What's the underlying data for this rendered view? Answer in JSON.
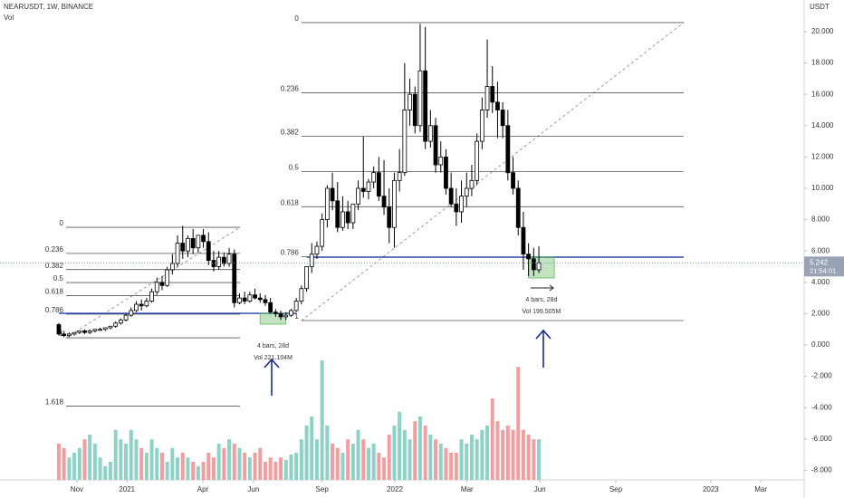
{
  "chart_data": {
    "type": "candlestick",
    "title": "NEARUSDT, 1W, BINANCE",
    "volume_label": "Vol",
    "y_axis_label": "USDT",
    "countdown": "21:54:01",
    "open": [
      1.3,
      0.7,
      0.6,
      0.7,
      0.8,
      0.9,
      0.8,
      0.9,
      1.0,
      1.0,
      1.1,
      1.2,
      1.4,
      1.6,
      1.9,
      2.2,
      2.6,
      2.5,
      2.8,
      3.4,
      4.0,
      3.8,
      4.8,
      5.2,
      6.5,
      6.0,
      6.8,
      6.2,
      7.0,
      6.6,
      5.4,
      5.0,
      5.6,
      5.2,
      5.8,
      2.7,
      3.0,
      2.8,
      3.2,
      3.0,
      2.9,
      2.7,
      2.1,
      2.0,
      1.8,
      1.9,
      2.2,
      2.8,
      3.6,
      5.0,
      5.8,
      6.3,
      8.0,
      10.0,
      9.2,
      7.5,
      8.5,
      7.8,
      9.0,
      10.0,
      9.8,
      10.4,
      11.0,
      9.5,
      8.8,
      7.5,
      10.5,
      11.0,
      15.0,
      16.0,
      14.0,
      17.5,
      13.0,
      14.0,
      11.5,
      12.0,
      10.0,
      9.0,
      8.5,
      9.5,
      10.0,
      10.5,
      13.0,
      15.0,
      16.5,
      15.5,
      15.0,
      14.0,
      11.0,
      10.0,
      7.5,
      5.8,
      5.5,
      4.8
    ],
    "high": [
      1.4,
      0.9,
      0.8,
      0.8,
      0.9,
      1.0,
      1.0,
      1.0,
      1.1,
      1.1,
      1.2,
      1.5,
      1.7,
      2.0,
      2.4,
      2.8,
      2.9,
      3.0,
      3.6,
      4.3,
      4.4,
      5.0,
      5.8,
      7.0,
      7.6,
      7.0,
      7.4,
      7.0,
      7.4,
      7.2,
      6.0,
      6.0,
      5.9,
      6.2,
      6.1,
      3.3,
      3.4,
      3.4,
      3.6,
      3.3,
      3.2,
      3.0,
      2.3,
      2.2,
      2.1,
      2.3,
      3.0,
      3.8,
      5.0,
      6.5,
      6.6,
      8.4,
      10.2,
      11.0,
      10.4,
      9.5,
      9.2,
      9.0,
      10.5,
      13.3,
      10.6,
      11.4,
      12.0,
      11.8,
      10.0,
      11.0,
      12.5,
      18.0,
      17.0,
      16.5,
      20.5,
      20.3,
      15.0,
      14.5,
      13.0,
      12.5,
      11.0,
      10.0,
      10.5,
      11.0,
      11.5,
      13.5,
      15.8,
      19.5,
      17.8,
      16.8,
      15.5,
      15.0,
      12.0,
      10.5,
      8.5,
      6.5,
      6.2,
      6.3
    ],
    "low": [
      0.6,
      0.5,
      0.5,
      0.6,
      0.7,
      0.7,
      0.7,
      0.8,
      0.9,
      0.9,
      1.0,
      1.1,
      1.3,
      1.5,
      1.8,
      2.1,
      2.2,
      2.4,
      2.7,
      3.2,
      3.5,
      3.7,
      4.5,
      5.0,
      5.5,
      5.6,
      5.8,
      5.9,
      6.2,
      5.1,
      4.7,
      4.8,
      5.0,
      5.0,
      2.4,
      2.6,
      2.6,
      2.7,
      2.9,
      2.7,
      2.5,
      2.0,
      1.8,
      1.6,
      1.6,
      1.8,
      2.1,
      2.6,
      3.4,
      4.6,
      5.5,
      6.0,
      7.5,
      8.6,
      7.2,
      7.3,
      7.4,
      7.4,
      8.6,
      9.4,
      9.3,
      10.0,
      9.2,
      8.3,
      6.5,
      6.2,
      9.8,
      10.8,
      14.0,
      13.5,
      13.6,
      12.5,
      12.6,
      11.0,
      11.0,
      9.6,
      8.8,
      7.6,
      7.8,
      8.8,
      9.5,
      10.2,
      12.5,
      14.5,
      14.8,
      13.2,
      13.2,
      10.5,
      9.6,
      7.0,
      4.8,
      4.4,
      4.4,
      4.6
    ],
    "close": [
      0.7,
      0.6,
      0.7,
      0.8,
      0.9,
      0.8,
      0.9,
      1.0,
      1.0,
      1.1,
      1.2,
      1.4,
      1.6,
      1.9,
      2.2,
      2.6,
      2.5,
      2.8,
      3.4,
      4.0,
      3.8,
      4.8,
      5.2,
      6.5,
      6.0,
      6.8,
      6.2,
      7.0,
      6.6,
      5.4,
      5.0,
      5.6,
      5.2,
      5.8,
      2.7,
      3.0,
      2.8,
      3.2,
      3.0,
      2.9,
      2.7,
      2.1,
      2.0,
      1.8,
      1.9,
      2.2,
      2.8,
      3.6,
      5.0,
      5.8,
      6.3,
      8.0,
      10.0,
      9.2,
      7.5,
      8.5,
      7.8,
      9.0,
      10.0,
      9.8,
      10.4,
      11.0,
      9.5,
      8.8,
      7.5,
      10.5,
      11.0,
      15.0,
      16.0,
      14.0,
      17.5,
      13.0,
      14.0,
      11.5,
      12.0,
      10.0,
      9.0,
      8.5,
      9.5,
      10.0,
      10.5,
      13.0,
      15.0,
      16.5,
      15.5,
      15.0,
      14.0,
      11.0,
      10.0,
      7.5,
      5.8,
      5.5,
      4.8,
      5.242
    ],
    "volume": [
      100,
      88,
      62,
      75,
      88,
      112,
      125,
      100,
      62,
      38,
      50,
      138,
      112,
      100,
      138,
      112,
      88,
      75,
      112,
      88,
      75,
      50,
      88,
      62,
      75,
      62,
      50,
      38,
      50,
      75,
      62,
      100,
      88,
      112,
      100,
      88,
      75,
      62,
      75,
      88,
      50,
      62,
      50,
      62,
      55,
      70,
      75,
      112,
      150,
      175,
      112,
      330,
      150,
      100,
      88,
      75,
      112,
      100,
      138,
      112,
      88,
      100,
      75,
      62,
      125,
      150,
      188,
      138,
      112,
      162,
      175,
      150,
      125,
      112,
      100,
      88,
      75,
      75,
      112,
      100,
      125,
      112,
      138,
      150,
      225,
      162,
      138,
      150,
      138,
      312,
      138,
      125,
      112,
      112
    ],
    "up_color": "#ffffff",
    "down_color": "#000000",
    "volume_up_color": "#8ed1c6",
    "volume_down_color": "#ef9f9f",
    "xlim": [
      -11.4,
      144.4
    ],
    "ylim": [
      -8.61,
      22.02
    ],
    "volume_ylim": [
      0,
      350
    ],
    "xticks": [
      {
        "value": 3.5,
        "label": "Nov"
      },
      {
        "value": 13.2,
        "label": "2021"
      },
      {
        "value": 27.9,
        "label": "Apr"
      },
      {
        "value": 37.7,
        "label": "Jun"
      },
      {
        "value": 51,
        "label": "Sep"
      },
      {
        "value": 65.1,
        "label": "2022"
      },
      {
        "value": 79.1,
        "label": "Mar"
      },
      {
        "value": 93.2,
        "label": "Jun"
      },
      {
        "value": 107.9,
        "label": "Sep"
      },
      {
        "value": 126.3,
        "label": "2023"
      },
      {
        "value": 136,
        "label": "Mar"
      }
    ],
    "yticks": [
      {
        "value": 20,
        "label": "20.000"
      },
      {
        "value": 18,
        "label": "18.000"
      },
      {
        "value": 16,
        "label": "16.000"
      },
      {
        "value": 14,
        "label": "14.000"
      },
      {
        "value": 12,
        "label": "12.000"
      },
      {
        "value": 10,
        "label": "10.000"
      },
      {
        "value": 8,
        "label": "8.000"
      },
      {
        "value": 6,
        "label": "6.000"
      },
      {
        "value": 4,
        "label": "4.000"
      },
      {
        "value": 2,
        "label": "2.000"
      },
      {
        "value": 0,
        "label": "0.000"
      },
      {
        "value": -2,
        "label": "-2.000"
      },
      {
        "value": -4,
        "label": "-4.000"
      },
      {
        "value": -6,
        "label": "-6.000"
      },
      {
        "value": -8,
        "label": "-8.000"
      }
    ],
    "fib": [
      {
        "start": 1.4,
        "end": 35.1,
        "high": 7.51,
        "low": 0.46,
        "levels": [
          0,
          0.236,
          0.382,
          0.5,
          0.618,
          0.786,
          1,
          1.618
        ]
      },
      {
        "start": 47,
        "end": 121.05,
        "high": 20.58,
        "low": 1.56,
        "levels": [
          0,
          0.236,
          0.382,
          0.5,
          0.618,
          0.786,
          1
        ]
      }
    ],
    "hlines": [
      {
        "value": 2.02,
        "start": 0,
        "end": 46,
        "color": "#2342b0"
      },
      {
        "value": 5.6,
        "start": 48,
        "end": 121.05,
        "color": "#2342b0"
      }
    ],
    "ranges": [
      {
        "start": 39,
        "end": 44,
        "top": 2.02,
        "bottom": 1.33,
        "bars": "4 bars, 28d",
        "volume": "Vol 221.104M"
      },
      {
        "start": 91,
        "end": 96,
        "top": 5.6,
        "bottom": 4.28,
        "bars": "4 bars, 28d",
        "volume": "Vol 199.505M"
      }
    ]
  }
}
